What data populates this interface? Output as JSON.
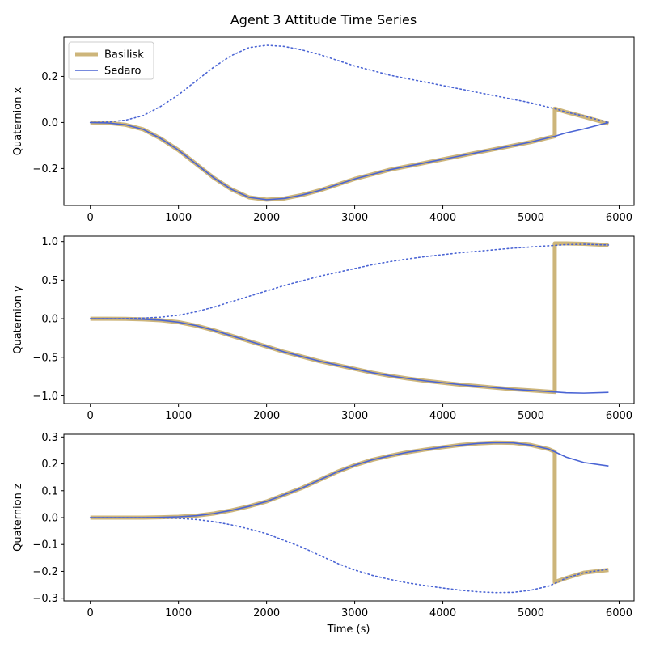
{
  "chart_data": {
    "type": "line",
    "title": "Agent 3 Attitude Time Series",
    "xlabel": "Time (s)",
    "legend": {
      "placement": "upper-left",
      "entries": [
        {
          "name": "Basilisk",
          "color": "#cdb57a",
          "style": "thick solid"
        },
        {
          "name": "Sedaro",
          "color": "#4a64d4",
          "style": "thin solid / dotted"
        }
      ]
    },
    "colors": {
      "basilisk": "#cdb57a",
      "sedaro": "#4a64d4"
    },
    "panels": [
      {
        "id": "x",
        "ylabel": "Quaternion x",
        "xlim": [
          -300,
          6170
        ],
        "ylim": [
          -0.36,
          0.37
        ],
        "xticks": [
          0,
          1000,
          2000,
          3000,
          4000,
          5000,
          6000
        ],
        "xtick_labels": [
          "0",
          "1000",
          "2000",
          "3000",
          "4000",
          "5000",
          "6000"
        ],
        "yticks": [
          -0.2,
          0.0,
          0.2
        ],
        "ytick_labels": [
          "−0.2",
          "0.0",
          "0.2"
        ],
        "series": [
          {
            "name": "Basilisk",
            "role": "basilisk",
            "x": [
              0,
              200,
              400,
              600,
              800,
              1000,
              1200,
              1400,
              1600,
              1800,
              2000,
              2200,
              2400,
              2600,
              2800,
              3000,
              3200,
              3400,
              3600,
              3800,
              4000,
              4200,
              4400,
              4600,
              4800,
              5000,
              5200,
              5270,
              5270,
              5400,
              5600,
              5880
            ],
            "y": [
              0,
              -0.002,
              -0.01,
              -0.03,
              -0.07,
              -0.12,
              -0.18,
              -0.24,
              -0.29,
              -0.325,
              -0.335,
              -0.33,
              -0.315,
              -0.295,
              -0.27,
              -0.245,
              -0.225,
              -0.205,
              -0.19,
              -0.175,
              -0.16,
              -0.145,
              -0.13,
              -0.115,
              -0.1,
              -0.085,
              -0.066,
              -0.06,
              0.06,
              0.045,
              0.025,
              -0.005
            ]
          },
          {
            "name": "Sedaro",
            "role": "sedaro-solid",
            "x": [
              0,
              200,
              400,
              600,
              800,
              1000,
              1200,
              1400,
              1600,
              1800,
              2000,
              2200,
              2400,
              2600,
              2800,
              3000,
              3200,
              3400,
              3600,
              3800,
              4000,
              4200,
              4400,
              4600,
              4800,
              5000,
              5200,
              5270,
              5400,
              5600,
              5880
            ],
            "y": [
              0,
              -0.002,
              -0.01,
              -0.03,
              -0.07,
              -0.12,
              -0.18,
              -0.24,
              -0.29,
              -0.325,
              -0.335,
              -0.33,
              -0.315,
              -0.295,
              -0.27,
              -0.245,
              -0.225,
              -0.205,
              -0.19,
              -0.175,
              -0.16,
              -0.145,
              -0.13,
              -0.115,
              -0.1,
              -0.085,
              -0.066,
              -0.06,
              -0.045,
              -0.028,
              0.0
            ]
          },
          {
            "name": "",
            "role": "sedaro-dotted",
            "x": [
              0,
              200,
              400,
              600,
              800,
              1000,
              1200,
              1400,
              1600,
              1800,
              2000,
              2200,
              2400,
              2600,
              2800,
              3000,
              3200,
              3400,
              3600,
              3800,
              4000,
              4200,
              4400,
              4600,
              4800,
              5000,
              5200,
              5270,
              5400,
              5600,
              5880
            ],
            "y": [
              0,
              0.002,
              0.01,
              0.03,
              0.07,
              0.12,
              0.18,
              0.24,
              0.29,
              0.325,
              0.335,
              0.33,
              0.315,
              0.295,
              0.27,
              0.245,
              0.225,
              0.205,
              0.19,
              0.175,
              0.16,
              0.145,
              0.13,
              0.115,
              0.1,
              0.085,
              0.066,
              0.06,
              0.045,
              0.028,
              0.0
            ]
          }
        ]
      },
      {
        "id": "y",
        "ylabel": "Quaternion y",
        "xlim": [
          -300,
          6170
        ],
        "ylim": [
          -1.1,
          1.07
        ],
        "xticks": [
          0,
          1000,
          2000,
          3000,
          4000,
          5000,
          6000
        ],
        "xtick_labels": [
          "0",
          "1000",
          "2000",
          "3000",
          "4000",
          "5000",
          "6000"
        ],
        "yticks": [
          -1.0,
          -0.5,
          0.0,
          0.5,
          1.0
        ],
        "ytick_labels": [
          "−1.0",
          "−0.5",
          "0.0",
          "0.5",
          "1.0"
        ],
        "series": [
          {
            "name": "Basilisk",
            "role": "basilisk",
            "x": [
              0,
              200,
              400,
              600,
              800,
              1000,
              1200,
              1400,
              1600,
              1800,
              2000,
              2200,
              2400,
              2600,
              2800,
              3000,
              3200,
              3400,
              3600,
              3800,
              4000,
              4200,
              4400,
              4600,
              4800,
              5000,
              5200,
              5270,
              5270,
              5400,
              5600,
              5880
            ],
            "y": [
              0,
              0,
              -0.002,
              -0.008,
              -0.02,
              -0.045,
              -0.09,
              -0.15,
              -0.22,
              -0.29,
              -0.36,
              -0.43,
              -0.49,
              -0.55,
              -0.6,
              -0.65,
              -0.7,
              -0.74,
              -0.775,
              -0.805,
              -0.83,
              -0.855,
              -0.875,
              -0.895,
              -0.915,
              -0.93,
              -0.945,
              -0.95,
              0.975,
              0.975,
              0.97,
              0.955
            ]
          },
          {
            "name": "Sedaro",
            "role": "sedaro-solid",
            "x": [
              0,
              200,
              400,
              600,
              800,
              1000,
              1200,
              1400,
              1600,
              1800,
              2000,
              2200,
              2400,
              2600,
              2800,
              3000,
              3200,
              3400,
              3600,
              3800,
              4000,
              4200,
              4400,
              4600,
              4800,
              5000,
              5200,
              5270,
              5400,
              5600,
              5880
            ],
            "y": [
              0,
              0,
              -0.002,
              -0.008,
              -0.02,
              -0.045,
              -0.09,
              -0.15,
              -0.22,
              -0.29,
              -0.36,
              -0.43,
              -0.49,
              -0.55,
              -0.6,
              -0.65,
              -0.7,
              -0.74,
              -0.775,
              -0.805,
              -0.83,
              -0.855,
              -0.875,
              -0.895,
              -0.915,
              -0.93,
              -0.945,
              -0.95,
              -0.96,
              -0.965,
              -0.955
            ]
          },
          {
            "name": "",
            "role": "sedaro-dotted",
            "x": [
              0,
              200,
              400,
              600,
              800,
              1000,
              1200,
              1400,
              1600,
              1800,
              2000,
              2200,
              2400,
              2600,
              2800,
              3000,
              3200,
              3400,
              3600,
              3800,
              4000,
              4200,
              4400,
              4600,
              4800,
              5000,
              5200,
              5270,
              5400,
              5600,
              5880
            ],
            "y": [
              0,
              0,
              0.002,
              0.008,
              0.02,
              0.045,
              0.09,
              0.15,
              0.22,
              0.29,
              0.36,
              0.43,
              0.49,
              0.55,
              0.6,
              0.65,
              0.7,
              0.74,
              0.775,
              0.805,
              0.83,
              0.855,
              0.875,
              0.895,
              0.915,
              0.93,
              0.945,
              0.95,
              0.96,
              0.965,
              0.955
            ]
          }
        ]
      },
      {
        "id": "z",
        "ylabel": "Quaternion z",
        "xlim": [
          -300,
          6170
        ],
        "ylim": [
          -0.31,
          0.31
        ],
        "xticks": [
          0,
          1000,
          2000,
          3000,
          4000,
          5000,
          6000
        ],
        "xtick_labels": [
          "0",
          "1000",
          "2000",
          "3000",
          "4000",
          "5000",
          "6000"
        ],
        "yticks": [
          -0.3,
          -0.2,
          -0.1,
          0.0,
          0.1,
          0.2,
          0.3
        ],
        "ytick_labels": [
          "−0.3",
          "−0.2",
          "−0.1",
          "0.0",
          "0.1",
          "0.2",
          "0.3"
        ],
        "series": [
          {
            "name": "Basilisk",
            "role": "basilisk",
            "x": [
              0,
              200,
              400,
              600,
              800,
              1000,
              1200,
              1400,
              1600,
              1800,
              2000,
              2200,
              2400,
              2600,
              2800,
              3000,
              3200,
              3400,
              3600,
              3800,
              4000,
              4200,
              4400,
              4600,
              4800,
              5000,
              5200,
              5270,
              5270,
              5400,
              5600,
              5880
            ],
            "y": [
              0,
              0,
              0,
              0,
              0.001,
              0.003,
              0.007,
              0.015,
              0.027,
              0.042,
              0.06,
              0.085,
              0.11,
              0.14,
              0.17,
              0.195,
              0.215,
              0.23,
              0.243,
              0.253,
              0.262,
              0.27,
              0.276,
              0.279,
              0.278,
              0.27,
              0.255,
              0.245,
              -0.24,
              -0.225,
              -0.205,
              -0.195
            ]
          },
          {
            "name": "Sedaro",
            "role": "sedaro-solid",
            "x": [
              0,
              200,
              400,
              600,
              800,
              1000,
              1200,
              1400,
              1600,
              1800,
              2000,
              2200,
              2400,
              2600,
              2800,
              3000,
              3200,
              3400,
              3600,
              3800,
              4000,
              4200,
              4400,
              4600,
              4800,
              5000,
              5200,
              5270,
              5400,
              5600,
              5880
            ],
            "y": [
              0,
              0,
              0,
              0,
              0.001,
              0.003,
              0.007,
              0.015,
              0.027,
              0.042,
              0.06,
              0.085,
              0.11,
              0.14,
              0.17,
              0.195,
              0.215,
              0.23,
              0.243,
              0.253,
              0.262,
              0.27,
              0.276,
              0.279,
              0.278,
              0.27,
              0.255,
              0.245,
              0.225,
              0.205,
              0.192
            ]
          },
          {
            "name": "",
            "role": "sedaro-dotted",
            "x": [
              0,
              200,
              400,
              600,
              800,
              1000,
              1200,
              1400,
              1600,
              1800,
              2000,
              2200,
              2400,
              2600,
              2800,
              3000,
              3200,
              3400,
              3600,
              3800,
              4000,
              4200,
              4400,
              4600,
              4800,
              5000,
              5200,
              5270,
              5400,
              5600,
              5880
            ],
            "y": [
              0,
              0,
              0,
              0,
              -0.001,
              -0.003,
              -0.007,
              -0.015,
              -0.027,
              -0.042,
              -0.06,
              -0.085,
              -0.11,
              -0.14,
              -0.17,
              -0.195,
              -0.215,
              -0.23,
              -0.243,
              -0.253,
              -0.262,
              -0.27,
              -0.276,
              -0.279,
              -0.278,
              -0.27,
              -0.255,
              -0.245,
              -0.225,
              -0.205,
              -0.192
            ]
          }
        ]
      }
    ]
  }
}
